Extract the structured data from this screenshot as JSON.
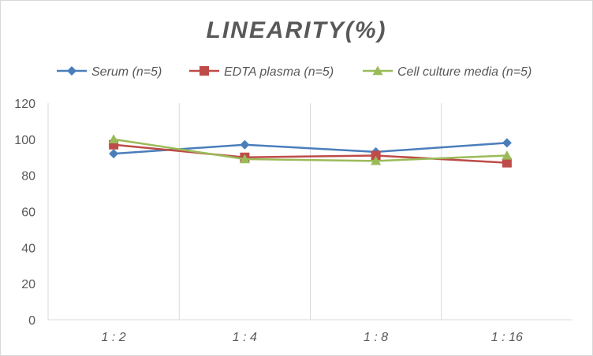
{
  "chart_data": {
    "type": "line",
    "title": "LINEARITY(%)",
    "categories": [
      "1:2",
      "1:4",
      "1:8",
      "1:16"
    ],
    "ylim": [
      0,
      120
    ],
    "yticks": [
      0,
      20,
      40,
      60,
      80,
      100,
      120
    ],
    "grid": "vertical",
    "legend_position": "top",
    "series": [
      {
        "name": "Serum (n=5)",
        "color": "#4a7ebb",
        "marker": "diamond",
        "values": [
          92,
          97,
          93,
          98
        ]
      },
      {
        "name": "EDTA plasma (n=5)",
        "color": "#be4b48",
        "marker": "square",
        "values": [
          97,
          90,
          91,
          87
        ]
      },
      {
        "name": "Cell culture media (n=5)",
        "color": "#9bbb59",
        "marker": "triangle",
        "values": [
          100,
          89,
          88,
          91
        ]
      }
    ]
  }
}
